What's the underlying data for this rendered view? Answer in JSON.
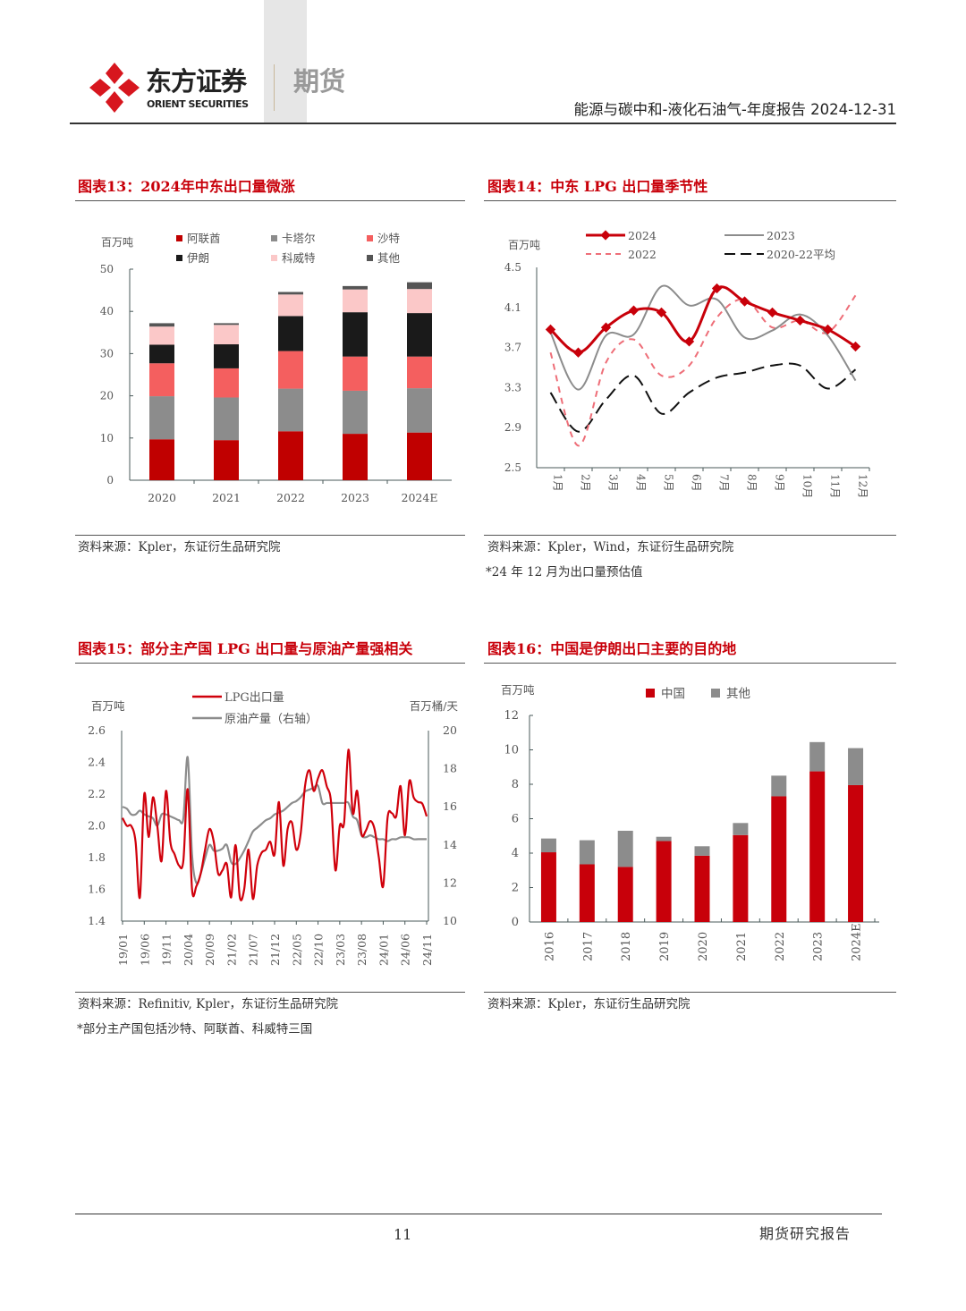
{
  "header": {
    "brand_cn": "东方证券",
    "brand_en": "ORIENT SECURITIES",
    "division": "期货",
    "report_title": "能源与碳中和-液化石油气-年度报告 2024-12-31"
  },
  "figures": [
    {
      "title": "图表13：2024年中东出口量微涨",
      "source": "资料来源：Kpler，东证衍生品研究院",
      "note": ""
    },
    {
      "title": "图表14：中东 LPG 出口量季节性",
      "source": "资料来源：Kpler，Wind，东证衍生品研究院",
      "note": "*24 年 12 月为出口量预估值"
    },
    {
      "title": "图表15：部分主产国 LPG 出口量与原油产量强相关",
      "source": "资料来源：Refinitiv, Kpler，东证衍生品研究院",
      "note": "*部分主产国包括沙特、阿联酋、科威特三国"
    },
    {
      "title": "图表16：中国是伊朗出口主要的目的地",
      "source": "资料来源：Kpler，东证衍生品研究院",
      "note": ""
    }
  ],
  "footer": {
    "page_number": "11",
    "label": "期货研究报告"
  },
  "colors": {
    "accent": "#c8000a",
    "uae": "#c00000",
    "qatar": "#8c8c8c",
    "saudi": "#f45f5f",
    "iran": "#1a1a1a",
    "kuwait": "#fbc8c8",
    "other": "#555555"
  },
  "chart_data": [
    {
      "type": "bar",
      "stacked": true,
      "ylabel": "百万吨",
      "ylim": [
        0,
        50
      ],
      "yticks": [
        0,
        10,
        20,
        30,
        40,
        50
      ],
      "categories": [
        "2020",
        "2021",
        "2022",
        "2023",
        "2024E"
      ],
      "legend_position": "top",
      "series": [
        {
          "name": "阿联酋",
          "color": "#c00000",
          "values": [
            9.7,
            9.5,
            11.6,
            11.0,
            11.3
          ]
        },
        {
          "name": "卡塔尔",
          "color": "#8c8c8c",
          "values": [
            10.2,
            10.1,
            10.1,
            10.2,
            10.5
          ]
        },
        {
          "name": "沙特",
          "color": "#f45f5f",
          "values": [
            7.8,
            6.9,
            8.9,
            8.1,
            7.5
          ]
        },
        {
          "name": "伊朗",
          "color": "#1a1a1a",
          "values": [
            4.4,
            5.7,
            8.3,
            10.5,
            10.3
          ]
        },
        {
          "name": "科威特",
          "color": "#fbc8c8",
          "values": [
            4.3,
            4.6,
            5.1,
            5.4,
            5.7
          ]
        },
        {
          "name": "其他",
          "color": "#555555",
          "values": [
            0.8,
            0.4,
            0.6,
            0.8,
            1.6
          ]
        }
      ]
    },
    {
      "type": "line",
      "ylabel": "百万吨",
      "ylim": [
        2.5,
        4.5
      ],
      "yticks": [
        "2.5",
        "2.9",
        "3.3",
        "3.7",
        "4.1",
        "4.5"
      ],
      "categories": [
        "1月",
        "2月",
        "3月",
        "4月",
        "5月",
        "6月",
        "7月",
        "8月",
        "9月",
        "10月",
        "11月",
        "12月"
      ],
      "legend_position": "top",
      "series": [
        {
          "name": "2024",
          "color": "#c8000a",
          "style": "solid-marker",
          "values": [
            3.88,
            3.65,
            3.9,
            4.07,
            4.05,
            3.76,
            4.29,
            4.16,
            4.05,
            3.97,
            3.88,
            3.71
          ]
        },
        {
          "name": "2023",
          "color": "#8c8c8c",
          "style": "solid",
          "values": [
            3.85,
            3.28,
            3.82,
            3.83,
            4.31,
            4.12,
            4.18,
            3.8,
            3.87,
            4.03,
            3.82,
            3.37
          ]
        },
        {
          "name": "2022",
          "color": "#ee6e78",
          "style": "dashed",
          "values": [
            3.65,
            2.72,
            3.55,
            3.78,
            3.42,
            3.52,
            4.0,
            4.18,
            3.9,
            3.97,
            3.85,
            4.22
          ]
        },
        {
          "name": "2020-22平均",
          "color": "#111111",
          "style": "long-dash",
          "values": [
            3.25,
            2.86,
            3.18,
            3.42,
            3.04,
            3.25,
            3.4,
            3.45,
            3.52,
            3.52,
            3.29,
            3.48
          ]
        }
      ]
    },
    {
      "type": "line",
      "ylabel": "百万吨",
      "ylabel_right": "百万桶/天",
      "ylim": [
        1.4,
        2.6
      ],
      "ylim_right": [
        10,
        20
      ],
      "yticks": [
        "1.4",
        "1.6",
        "1.8",
        "2.0",
        "2.2",
        "2.4",
        "2.6"
      ],
      "yticks_right": [
        "10",
        "12",
        "14",
        "16",
        "18",
        "20"
      ],
      "xticks": [
        "19/01",
        "19/06",
        "19/11",
        "20/04",
        "20/09",
        "21/02",
        "21/07",
        "21/12",
        "22/05",
        "22/10",
        "23/03",
        "23/08",
        "24/01",
        "24/06",
        "24/11"
      ],
      "x_start": "2019-01",
      "x_end": "2024-11",
      "legend_position": "top",
      "series": [
        {
          "name": "LPG出口量",
          "axis": "left",
          "color": "#d0000b",
          "values": [
            2.05,
            2.0,
            2.0,
            1.9,
            1.55,
            2.2,
            1.93,
            2.18,
            2.0,
            1.78,
            2.22,
            1.9,
            1.82,
            1.75,
            1.78,
            2.23,
            1.6,
            1.62,
            1.7,
            1.85,
            1.98,
            1.9,
            1.7,
            1.72,
            1.76,
            1.55,
            1.88,
            1.55,
            1.6,
            1.85,
            1.54,
            1.75,
            1.83,
            1.85,
            1.9,
            1.82,
            2.15,
            1.75,
            1.98,
            2.02,
            1.85,
            1.95,
            2.25,
            2.35,
            2.22,
            2.3,
            2.35,
            2.25,
            2.15,
            1.72,
            2.0,
            2.02,
            2.48,
            2.08,
            2.22,
            1.95,
            1.97,
            2.03,
            1.98,
            1.8,
            1.62,
            2.05,
            2.08,
            2.06,
            2.25,
            1.94,
            2.28,
            2.18,
            2.15,
            2.14,
            2.06
          ]
        },
        {
          "name": "原油产量（右轴）",
          "axis": "right",
          "color": "#8c8c8c",
          "values": [
            16.0,
            15.9,
            15.6,
            15.6,
            15.8,
            15.6,
            15.5,
            15.4,
            15.0,
            15.6,
            15.6,
            15.5,
            15.4,
            15.3,
            15.4,
            18.6,
            13.5,
            12.0,
            12.5,
            13.3,
            14.0,
            13.7,
            13.7,
            13.8,
            14.0,
            13.1,
            13.0,
            13.3,
            13.7,
            14.2,
            14.7,
            14.9,
            15.1,
            15.3,
            15.4,
            15.6,
            15.7,
            15.8,
            16.0,
            16.2,
            16.3,
            16.5,
            16.8,
            16.9,
            17.0,
            17.1,
            16.2,
            16.2,
            16.2,
            16.2,
            16.2,
            16.2,
            16.2,
            15.5,
            15.3,
            14.5,
            14.4,
            14.5,
            14.4,
            14.3,
            14.3,
            14.2,
            14.3,
            14.3,
            14.4,
            14.4,
            14.4,
            14.3,
            14.3,
            14.3,
            14.3
          ]
        }
      ]
    },
    {
      "type": "bar",
      "stacked": true,
      "ylabel": "百万吨",
      "ylim": [
        0,
        12
      ],
      "yticks": [
        0,
        2,
        4,
        6,
        8,
        10,
        12
      ],
      "categories": [
        "2016",
        "2017",
        "2018",
        "2019",
        "2020",
        "2021",
        "2022",
        "2023",
        "2024E"
      ],
      "legend_position": "top",
      "series": [
        {
          "name": "中国",
          "color": "#c8000a",
          "values": [
            4.05,
            3.35,
            3.2,
            4.7,
            3.85,
            5.05,
            7.3,
            8.75,
            7.95
          ]
        },
        {
          "name": "其他",
          "color": "#8c8c8c",
          "values": [
            0.8,
            1.4,
            2.1,
            0.25,
            0.55,
            0.7,
            1.2,
            1.7,
            2.15
          ]
        }
      ]
    }
  ]
}
